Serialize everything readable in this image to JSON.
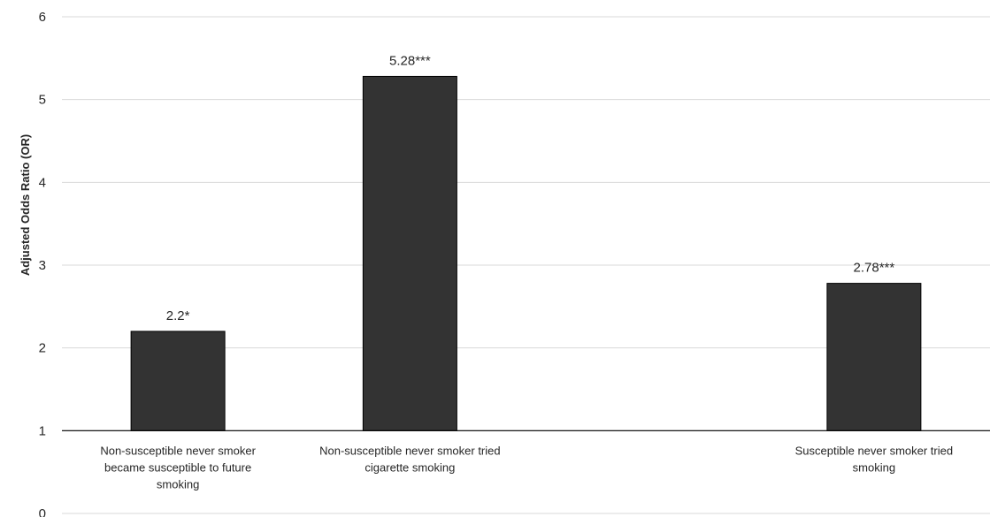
{
  "chart_data": {
    "type": "bar",
    "title": "",
    "xlabel": "",
    "ylabel": "Adjusted Odds Ratio (OR)",
    "ylim": [
      0,
      6
    ],
    "baseline": 1,
    "yticks": [
      "0",
      "1",
      "2",
      "3",
      "4",
      "5",
      "6"
    ],
    "grid": true,
    "bar_color": "#333333",
    "categories": [
      [
        "Non-susceptible never smoker",
        "became susceptible to future",
        "smoking"
      ],
      [
        "Non-susceptible never smoker tried",
        "cigarette smoking"
      ],
      [],
      [
        "Susceptible never smoker tried",
        "smoking"
      ]
    ],
    "values": [
      2.2,
      5.28,
      null,
      2.78
    ],
    "data_labels": [
      "2.2*",
      "5.28***",
      "",
      "2.78***"
    ]
  }
}
